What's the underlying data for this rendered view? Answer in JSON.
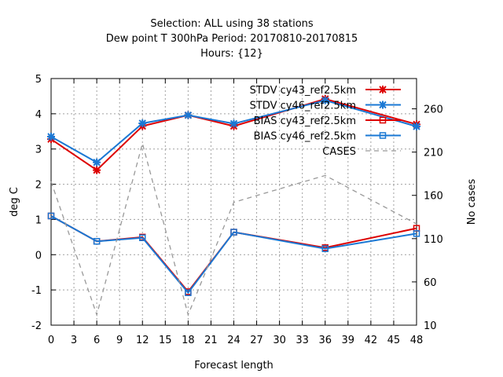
{
  "chart_data": {
    "type": "line",
    "title_lines": [
      "Selection: ALL using    38 stations",
      "Dew point T 300hPa   Period: 20170810-20170815",
      "Hours: {12}"
    ],
    "xlabel": "Forecast length",
    "ylabel": "deg C",
    "y2label": "No cases",
    "xlim": [
      0,
      48
    ],
    "ylim": [
      -2,
      5
    ],
    "y2lim": [
      10,
      295
    ],
    "xticks": [
      0,
      3,
      6,
      9,
      12,
      15,
      18,
      21,
      24,
      27,
      30,
      33,
      36,
      39,
      42,
      45,
      48
    ],
    "yticks": [
      -2,
      -1,
      0,
      1,
      2,
      3,
      4,
      5
    ],
    "y2ticks": [
      10,
      60,
      110,
      160,
      210,
      260
    ],
    "grid": true,
    "legend_position": "top-right",
    "x": [
      0,
      6,
      12,
      18,
      24,
      36,
      48
    ],
    "series": [
      {
        "name": "STDV cy43_ref2.5km",
        "axis": "y",
        "color": "#dd0000",
        "marker": "star",
        "values": [
          3.28,
          2.4,
          3.65,
          3.96,
          3.65,
          4.42,
          3.7
        ]
      },
      {
        "name": "STDV cy46_ref2.5km",
        "axis": "y",
        "color": "#1a78d4",
        "marker": "star",
        "values": [
          3.35,
          2.62,
          3.73,
          3.96,
          3.72,
          4.38,
          3.64
        ]
      },
      {
        "name": "BIAS cy43_ref2.5km",
        "axis": "y",
        "color": "#dd0000",
        "marker": "square",
        "values": [
          1.1,
          0.38,
          0.5,
          -1.05,
          0.64,
          0.2,
          0.75
        ]
      },
      {
        "name": "BIAS cy46_ref2.5km",
        "axis": "y",
        "color": "#1a78d4",
        "marker": "square",
        "values": [
          1.1,
          0.38,
          0.48,
          -1.08,
          0.64,
          0.17,
          0.6
        ]
      },
      {
        "name": "CASES",
        "axis": "y2",
        "color": "#999999",
        "marker": "none",
        "dashed": true,
        "values": [
          176,
          22,
          220,
          22,
          152,
          183,
          127
        ]
      }
    ]
  }
}
